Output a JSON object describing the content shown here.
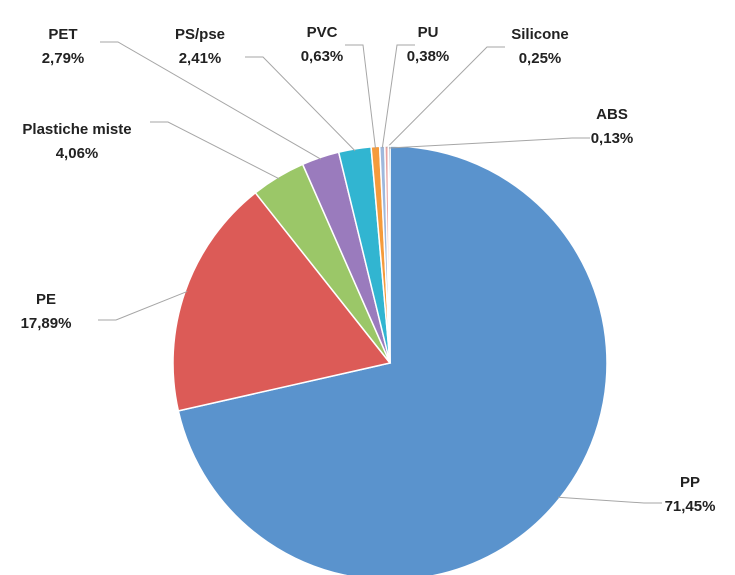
{
  "chart_data": {
    "type": "pie",
    "categories": [
      "PP",
      "PE",
      "Plastiche miste",
      "PET",
      "PS/pse",
      "PVC",
      "PU",
      "Silicone",
      "ABS"
    ],
    "values": [
      71.45,
      17.89,
      4.06,
      2.79,
      2.41,
      0.63,
      0.38,
      0.25,
      0.13
    ],
    "value_labels": [
      "71,45%",
      "17,89%",
      "4,06%",
      "2,79%",
      "2,41%",
      "0,63%",
      "0,38%",
      "0,25%",
      "0,13%"
    ],
    "colors": [
      "#5a93cd",
      "#dc5b57",
      "#9bc768",
      "#9a7bbd",
      "#31b5d1",
      "#f59b3c",
      "#9fb8dc",
      "#e9a3a1",
      "#2d4f78"
    ]
  }
}
